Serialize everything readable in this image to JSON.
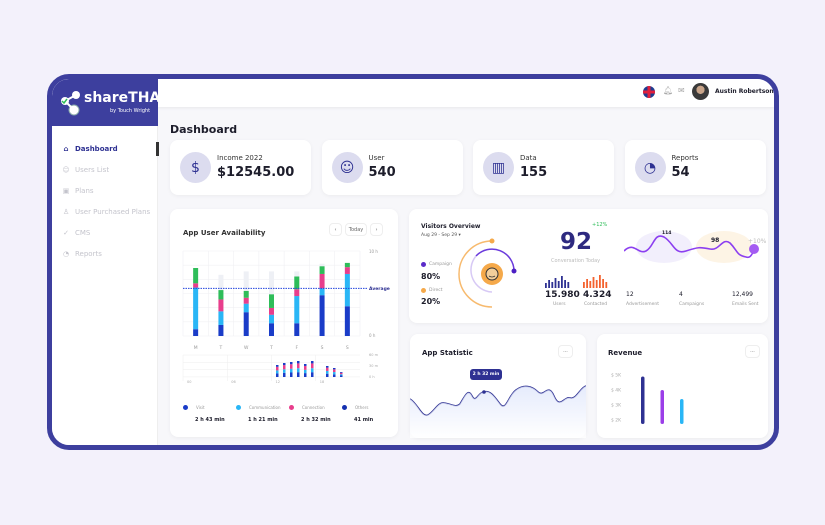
{
  "app": {
    "name": "shareTHAT",
    "tagline": "by Touch Wright"
  },
  "sidebar": {
    "items": [
      {
        "label": "Dashboard",
        "icon": "home-icon",
        "active": true
      },
      {
        "label": "Users List",
        "icon": "users-icon"
      },
      {
        "label": "Plans",
        "icon": "plans-icon"
      },
      {
        "label": "User Purchased Plans",
        "icon": "user-plus-icon"
      },
      {
        "label": "CMS",
        "icon": "check-circle-icon"
      },
      {
        "label": "Reports",
        "icon": "pie-chart-icon"
      }
    ]
  },
  "header": {
    "user_name": "Austin Robertson",
    "icons": [
      "uk-flag-icon",
      "bell-icon",
      "mail-icon"
    ]
  },
  "page_title": "Dashboard",
  "stats": [
    {
      "label": "Income 2022",
      "value": "$12545.00",
      "icon": "dollar-icon"
    },
    {
      "label": "User",
      "value": "540",
      "icon": "users-icon"
    },
    {
      "label": "Data",
      "value": "155",
      "icon": "books-icon"
    },
    {
      "label": "Reports",
      "value": "54",
      "icon": "pie-chart-icon"
    }
  ],
  "availability": {
    "title": "App User Availability",
    "today_label": "Today",
    "y_labels": [
      "10 h",
      "0 h"
    ],
    "average_label": "Average",
    "chart_data": {
      "type": "bar",
      "stacked": true,
      "categories": [
        "M",
        "T",
        "W",
        "T",
        "F",
        "S",
        "S"
      ],
      "ylim": [
        0,
        10
      ],
      "average": 5.6,
      "series": [
        {
          "name": "Others",
          "color": "#1a3cc8",
          "values": [
            0.8,
            1.3,
            2.8,
            1.5,
            1.5,
            4.8,
            3.5
          ]
        },
        {
          "name": "Communication",
          "color": "#29b6f6",
          "values": [
            4.9,
            1.6,
            1.0,
            1.0,
            3.2,
            0.8,
            3.8
          ]
        },
        {
          "name": "Connection",
          "color": "#e83e8c",
          "values": [
            0.5,
            1.4,
            0.7,
            0.8,
            0.8,
            1.7,
            0.8
          ]
        },
        {
          "color": "#2ebd59",
          "values": [
            1.8,
            1.1,
            0.8,
            1.6,
            1.5,
            0.9,
            0.5
          ]
        }
      ],
      "max": [
        6.5,
        7.2,
        7.6,
        7.6,
        7.6,
        8.5,
        7.9
      ]
    },
    "mini_chart": {
      "x_labels": [
        "00",
        "06",
        "12",
        "18"
      ],
      "y_labels": [
        "60 m",
        "30 m",
        "0 h"
      ]
    },
    "legend": [
      {
        "label": "Visit",
        "value": "2 h 43 min",
        "color": "#1a3cc8"
      },
      {
        "label": "Communication",
        "value": "1 h 21 min",
        "color": "#29b6f6"
      },
      {
        "label": "Connection",
        "value": "2 h 32 min",
        "color": "#e83e8c"
      },
      {
        "label": "Others",
        "value": "41 min",
        "color": "#1530b0"
      }
    ]
  },
  "visitors": {
    "title": "Visitors Overview",
    "range": "Aug 29 - Sep 29",
    "campaign_label": "Campaign",
    "campaign_pct": "80%",
    "direct_label": "Direct",
    "direct_pct": "20%",
    "campaign_color": "#5b2bc9",
    "direct_color": "#f5a94a",
    "conversion": "92",
    "conversion_change": "+12%",
    "conversion_label": "Conversation Today",
    "users": "15.980",
    "users_label": "Users",
    "contacted": "4.324",
    "contacted_label": "Contacted",
    "wave_peak1": "114",
    "wave_peak2": "98",
    "wave_change": "+10%",
    "metrics": [
      {
        "value": "12",
        "label": "Advertisement"
      },
      {
        "value": "4",
        "label": "Campaigns"
      },
      {
        "value": "12,499",
        "label": "Emails Sent"
      }
    ]
  },
  "app_statistic": {
    "title": "App Statistic",
    "tooltip": "2 h 32 min"
  },
  "revenue": {
    "title": "Revenue",
    "y_labels": [
      "$ 5K",
      "$ 4K",
      "$ 3K",
      "$ 2K"
    ],
    "chart_data": {
      "type": "bar",
      "values": [
        4.9,
        4.0,
        3.4
      ],
      "colors": [
        "#2e3192",
        "#9b3ee8",
        "#29b6f6"
      ],
      "ylim": [
        2,
        5
      ]
    }
  }
}
